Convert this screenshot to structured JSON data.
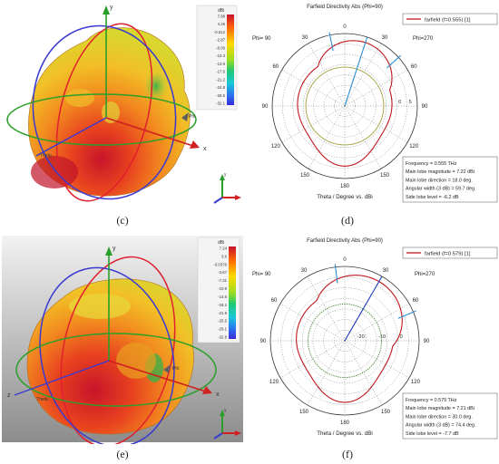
{
  "panels": {
    "c": {
      "caption": "(c)",
      "colorbar": {
        "unit": "dBi",
        "ticks": [
          "7.88",
          "4.25",
          "-0.612",
          "-2.87",
          "-6.06",
          "-10.3",
          "-13.9",
          "-17.6",
          "-21.2",
          "-24.8",
          "-28.5",
          "-32.1"
        ]
      },
      "axis_labels": {
        "y": "y",
        "x": "x",
        "theta": "Theta",
        "phi": "Phi"
      }
    },
    "e": {
      "caption": "(e)",
      "colorbar": {
        "unit": "dBi",
        "ticks": [
          "7.24",
          "3.6",
          "-0.0376",
          "-3.67",
          "-7.31",
          "-10.9",
          "-14.6",
          "-18.2",
          "-21.9",
          "-25.5",
          "-29.1",
          "-32.8"
        ]
      },
      "axis_labels": {
        "y": "y",
        "x": "x",
        "theta": "Theta",
        "phi": "Phi"
      }
    },
    "d": {
      "caption": "(d)"
    },
    "f": {
      "caption": "(f)"
    }
  },
  "chart_data": [
    {
      "id": "d",
      "type": "polar",
      "title": "Farfield Directivity Abs (Phi=90)",
      "left_label": "Phi= 90",
      "right_label": "Phi=270",
      "axis_title": "Theta / Degree vs. dBi",
      "angle_ticks": [
        "0",
        "30",
        "60",
        "90",
        "120",
        "150",
        "180",
        "150",
        "120",
        "90",
        "60",
        "30"
      ],
      "radial_ticks": [
        "0",
        "5"
      ],
      "rlim": [
        -25,
        10
      ],
      "legend": "farfield (f=0.555) [1]",
      "main_lobe": {
        "theta": 18.0,
        "value": 7.22
      },
      "threedb_half_angle": 29.85,
      "sidelobe_level": -6.2,
      "info_lines": [
        "Frequency = 0.555 THz",
        "Main lobe magnitude =    7.22 dBi",
        "Main lobe direction =    18.0 deg.",
        "Angular width (3 dB) =   59.7 deg.",
        "Side lobe level =   -6.2 dB"
      ],
      "colors": {
        "curve": "#c0181f",
        "marker": "#2b8fd6",
        "ref": "#a3a23a"
      }
    },
    {
      "id": "f",
      "type": "polar",
      "title": "Farfield Directivity Abs (Phi=90)",
      "left_label": "Phi= 90",
      "right_label": "Phi=270",
      "axis_title": "Theta / Degree vs. dBi",
      "angle_ticks": [
        "0",
        "30",
        "60",
        "90",
        "120",
        "150",
        "180",
        "150",
        "120",
        "90",
        "60",
        "30"
      ],
      "radial_ticks": [
        "-20",
        "-10",
        "0"
      ],
      "rlim": [
        -25,
        10
      ],
      "legend": "farfield (f=0.579) [1]",
      "main_lobe": {
        "theta": 30.0,
        "value": 7.21
      },
      "threedb_half_angle": 37.2,
      "sidelobe_level": -7.7,
      "info_lines": [
        "Frequency = 0.579 THz",
        "Main lobe magnitude =    7.21 dBi",
        "Main lobe direction =    30.0 deg.",
        "Angular width (3 dB) =   74.4 deg.",
        "Side lobe level =   -7.7 dB"
      ],
      "colors": {
        "curve": "#c0181f",
        "marker": "#2b8fd6",
        "ref": "#4d8a3a"
      }
    }
  ]
}
